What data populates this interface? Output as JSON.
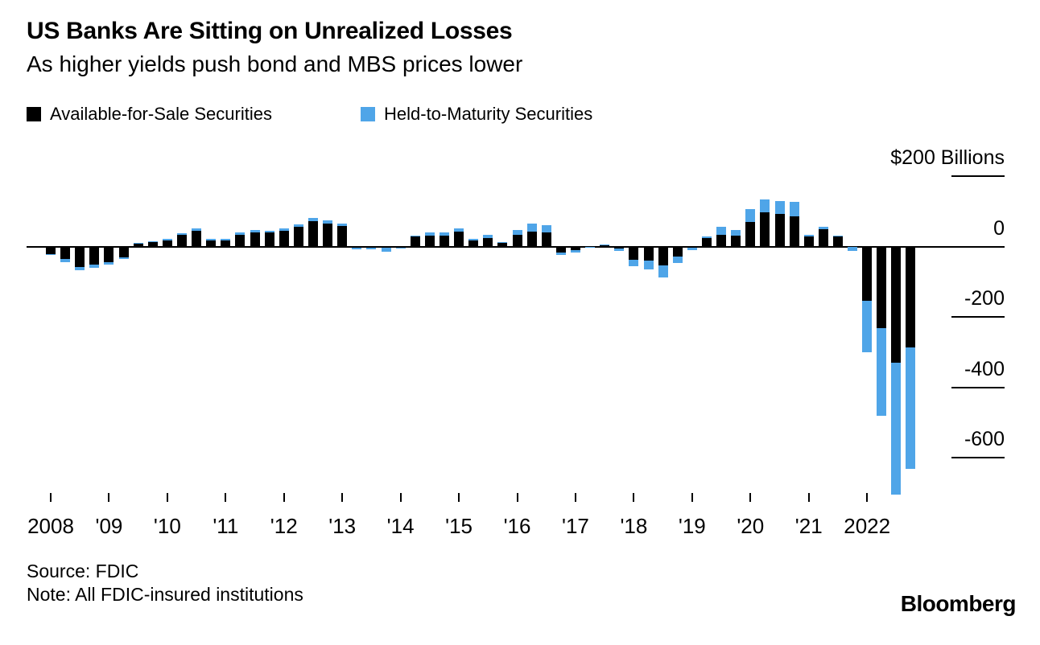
{
  "header": {
    "title": "US Banks Are Sitting on Unrealized Losses",
    "subtitle": "As higher yields push bond and MBS prices lower"
  },
  "legend": [
    {
      "label": "Available-for-Sale Securities",
      "color": "#000000"
    },
    {
      "label": "Held-to-Maturity Securities",
      "color": "#4fa5e8"
    }
  ],
  "footer": {
    "source": "Source: FDIC",
    "note": "Note: All FDIC-insured institutions",
    "brand": "Bloomberg"
  },
  "chart_data": {
    "type": "bar",
    "stacked": true,
    "title": "US Banks Are Sitting on Unrealized Losses",
    "subtitle": "As higher yields push bond and MBS prices lower",
    "ylabel": "$200 Billions",
    "units": "USD billions",
    "ylim": [
      -720,
      200
    ],
    "grid": "right-side tick segments only",
    "legend_position": "top-left",
    "y_axis": {
      "tick_values": [
        200,
        0,
        -200,
        -400,
        -600
      ],
      "tick_labels": [
        "$200 Billions",
        "0",
        "-200",
        "-400",
        "-600"
      ]
    },
    "x_axis": {
      "tick_labels": [
        "2008",
        "'09",
        "'10",
        "'11",
        "'12",
        "'13",
        "'14",
        "'15",
        "'16",
        "'17",
        "'18",
        "'19",
        "'20",
        "'21",
        "2022"
      ],
      "ticks_mark": "first quarter of each year"
    },
    "categories": [
      "2008 Q1",
      "2008 Q2",
      "2008 Q3",
      "2008 Q4",
      "2009 Q1",
      "2009 Q2",
      "2009 Q3",
      "2009 Q4",
      "2010 Q1",
      "2010 Q2",
      "2010 Q3",
      "2010 Q4",
      "2011 Q1",
      "2011 Q2",
      "2011 Q3",
      "2011 Q4",
      "2012 Q1",
      "2012 Q2",
      "2012 Q3",
      "2012 Q4",
      "2013 Q1",
      "2013 Q2",
      "2013 Q3",
      "2013 Q4",
      "2014 Q1",
      "2014 Q2",
      "2014 Q3",
      "2014 Q4",
      "2015 Q1",
      "2015 Q2",
      "2015 Q3",
      "2015 Q4",
      "2016 Q1",
      "2016 Q2",
      "2016 Q3",
      "2016 Q4",
      "2017 Q1",
      "2017 Q2",
      "2017 Q3",
      "2017 Q4",
      "2018 Q1",
      "2018 Q2",
      "2018 Q3",
      "2018 Q4",
      "2019 Q1",
      "2019 Q2",
      "2019 Q3",
      "2019 Q4",
      "2020 Q1",
      "2020 Q2",
      "2020 Q3",
      "2020 Q4",
      "2021 Q1",
      "2021 Q2",
      "2021 Q3",
      "2021 Q4",
      "2022 Q1",
      "2022 Q2",
      "2022 Q3",
      "2022 Q4"
    ],
    "series": [
      {
        "name": "Available-for-Sale Securities",
        "color": "#000000",
        "values": [
          -21,
          -36,
          -58,
          -52,
          -44,
          -30,
          8,
          12,
          17,
          32,
          44,
          18,
          17,
          34,
          41,
          40,
          45,
          56,
          73,
          66,
          58,
          -4,
          -4,
          -4,
          -3,
          28,
          30,
          31,
          42,
          19,
          25,
          11,
          32,
          42,
          41,
          -18,
          -11,
          -1,
          5,
          -6,
          -37,
          -41,
          -54,
          -28,
          -3,
          25,
          34,
          31,
          69,
          96,
          92,
          86,
          30,
          50,
          29,
          -2,
          -155,
          -231,
          -330,
          -286
        ]
      },
      {
        "name": "Held-to-Maturity Securities",
        "color": "#4fa5e8",
        "values": [
          -3,
          -8,
          -9,
          -8,
          -8,
          -6,
          3,
          3,
          4,
          6,
          7,
          3,
          4,
          6,
          5,
          5,
          6,
          7,
          9,
          8,
          7,
          -1,
          -2,
          -10,
          -2,
          3,
          9,
          9,
          10,
          2,
          9,
          2,
          14,
          24,
          19,
          -7,
          -6,
          -3,
          1,
          -6,
          -20,
          -25,
          -33,
          -19,
          -7,
          4,
          21,
          15,
          38,
          38,
          38,
          41,
          2,
          7,
          2,
          -11,
          -145,
          -250,
          -374,
          -345
        ]
      }
    ]
  }
}
